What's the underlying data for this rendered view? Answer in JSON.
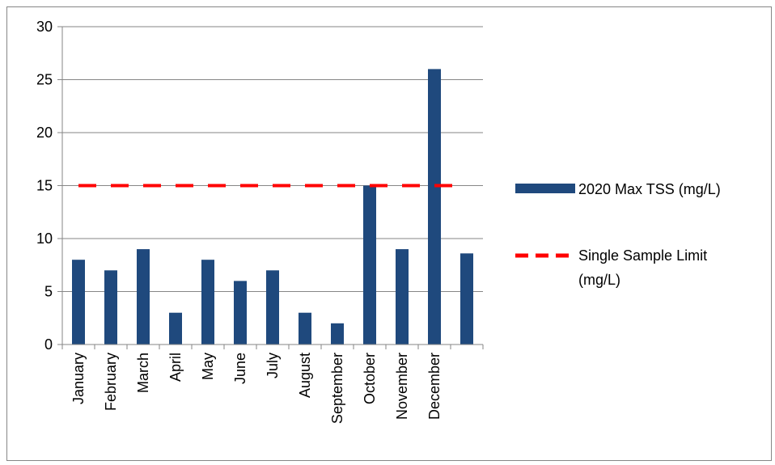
{
  "chart_data": {
    "type": "bar",
    "categories": [
      "January",
      "February",
      "March",
      "April",
      "May",
      "June",
      "July",
      "August",
      "September",
      "October",
      "November",
      "December",
      ""
    ],
    "series": [
      {
        "name": "2020 Max TSS (mg/L)",
        "values": [
          8,
          7,
          9,
          3,
          8,
          6,
          7,
          3,
          2,
          15,
          9,
          26,
          8.6
        ],
        "color": "#1f497d"
      }
    ],
    "reference_line": {
      "name_lines": [
        "Single Sample Limit",
        "(mg/L)"
      ],
      "value": 15,
      "color": "#ff0000",
      "style": "dashed"
    },
    "ylim": [
      0,
      30
    ],
    "y_ticks": [
      "0",
      "5",
      "10",
      "15",
      "20",
      "25",
      "30"
    ],
    "grid": true,
    "legend_position": "right"
  }
}
